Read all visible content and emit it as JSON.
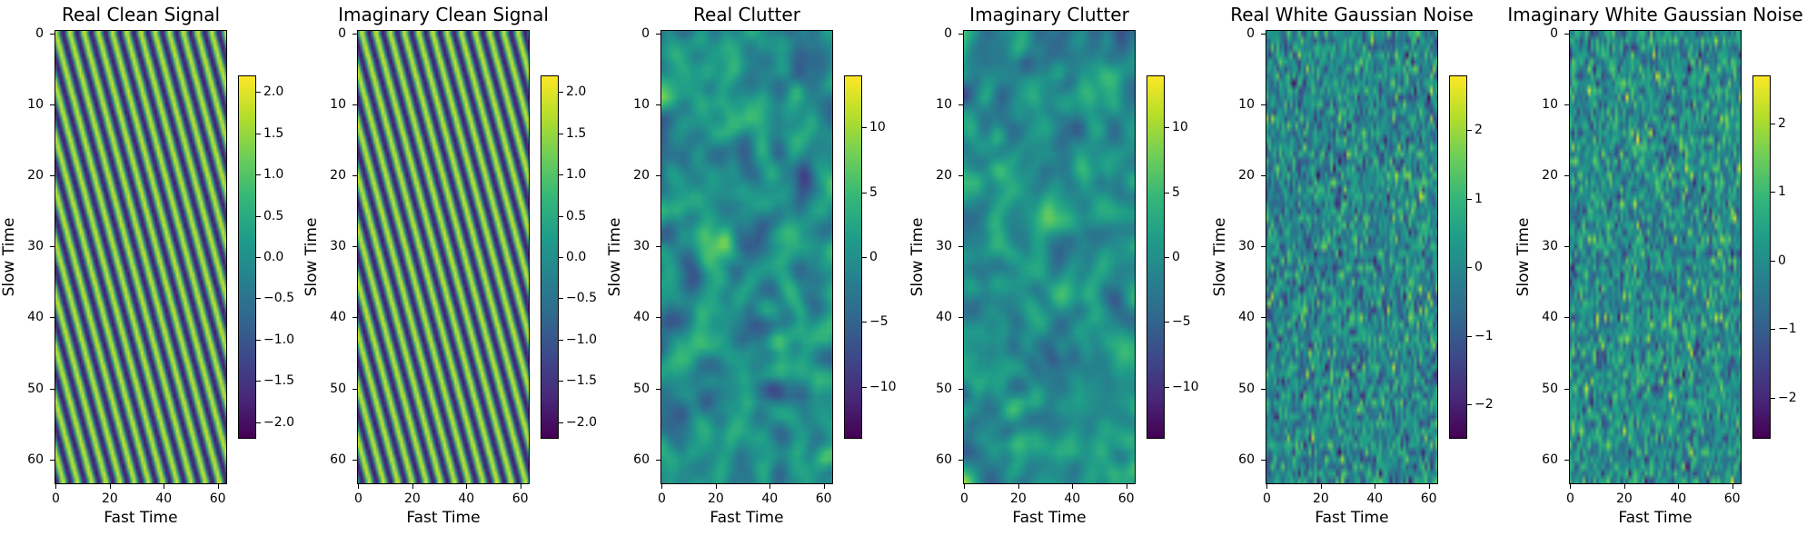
{
  "figure": {
    "colormap": "viridis",
    "colormap_stops": [
      "#440154",
      "#482878",
      "#3e4989",
      "#31688e",
      "#26828e",
      "#1f9e89",
      "#35b779",
      "#6ece58",
      "#b5de2b",
      "#fde725"
    ]
  },
  "chart_data": [
    {
      "type": "heatmap",
      "title": "Real Clean Signal",
      "xlabel": "Fast Time",
      "ylabel": "Slow Time",
      "shape": [
        64,
        64
      ],
      "xlim": [
        0,
        63
      ],
      "ylim": [
        63,
        0
      ],
      "xticks": [
        "0",
        "20",
        "40",
        "60"
      ],
      "yticks": [
        "0",
        "10",
        "20",
        "30",
        "40",
        "50",
        "60"
      ],
      "pattern": "diagonal sinusoidal grating (clean signal)",
      "colorbar": {
        "min": -2.2,
        "max": 2.2,
        "ticks": [
          "2.0",
          "1.5",
          "1.0",
          "0.5",
          "0.0",
          "−0.5",
          "−1.0",
          "−1.5",
          "−2.0"
        ]
      }
    },
    {
      "type": "heatmap",
      "title": "Imaginary Clean Signal",
      "xlabel": "Fast Time",
      "ylabel": "Slow Time",
      "shape": [
        64,
        64
      ],
      "xlim": [
        0,
        63
      ],
      "ylim": [
        63,
        0
      ],
      "xticks": [
        "0",
        "20",
        "40",
        "60"
      ],
      "yticks": [
        "0",
        "10",
        "20",
        "30",
        "40",
        "50",
        "60"
      ],
      "pattern": "diagonal sinusoidal grating (clean signal)",
      "colorbar": {
        "min": -2.2,
        "max": 2.2,
        "ticks": [
          "2.0",
          "1.5",
          "1.0",
          "0.5",
          "0.0",
          "−0.5",
          "−1.0",
          "−1.5",
          "−2.0"
        ]
      }
    },
    {
      "type": "heatmap",
      "title": "Real Clutter",
      "xlabel": "Fast Time",
      "ylabel": "Slow Time",
      "shape": [
        64,
        64
      ],
      "xlim": [
        0,
        63
      ],
      "ylim": [
        63,
        0
      ],
      "xticks": [
        "0",
        "20",
        "40",
        "60"
      ],
      "yticks": [
        "0",
        "10",
        "20",
        "30",
        "40",
        "50",
        "60"
      ],
      "pattern": "smooth correlated clutter",
      "colorbar": {
        "min": -14,
        "max": 14,
        "ticks": [
          "10",
          "5",
          "0",
          "−5",
          "−10"
        ]
      }
    },
    {
      "type": "heatmap",
      "title": "Imaginary Clutter",
      "xlabel": "Fast Time",
      "ylabel": "Slow Time",
      "shape": [
        64,
        64
      ],
      "xlim": [
        0,
        63
      ],
      "ylim": [
        63,
        0
      ],
      "xticks": [
        "0",
        "20",
        "40",
        "60"
      ],
      "yticks": [
        "0",
        "10",
        "20",
        "30",
        "40",
        "50",
        "60"
      ],
      "pattern": "smooth correlated clutter",
      "colorbar": {
        "min": -14,
        "max": 14,
        "ticks": [
          "10",
          "5",
          "0",
          "−5",
          "−10"
        ]
      }
    },
    {
      "type": "heatmap",
      "title": "Real White Gaussian Noise",
      "xlabel": "Fast Time",
      "ylabel": "Slow Time",
      "shape": [
        64,
        64
      ],
      "xlim": [
        0,
        63
      ],
      "ylim": [
        63,
        0
      ],
      "xticks": [
        "0",
        "20",
        "40",
        "60"
      ],
      "yticks": [
        "0",
        "10",
        "20",
        "30",
        "40",
        "50",
        "60"
      ],
      "pattern": "white gaussian noise",
      "colorbar": {
        "min": -2.5,
        "max": 2.8,
        "ticks": [
          "2",
          "1",
          "0",
          "−1",
          "−2"
        ]
      }
    },
    {
      "type": "heatmap",
      "title": "Imaginary White Gaussian Noise",
      "xlabel": "Fast Time",
      "ylabel": "Slow Time",
      "shape": [
        64,
        64
      ],
      "xlim": [
        0,
        63
      ],
      "ylim": [
        63,
        0
      ],
      "xticks": [
        "0",
        "20",
        "40",
        "60"
      ],
      "yticks": [
        "0",
        "10",
        "20",
        "30",
        "40",
        "50",
        "60"
      ],
      "pattern": "white gaussian noise",
      "colorbar": {
        "min": -2.6,
        "max": 2.7,
        "ticks": [
          "2",
          "1",
          "0",
          "−1",
          "−2"
        ]
      }
    }
  ]
}
